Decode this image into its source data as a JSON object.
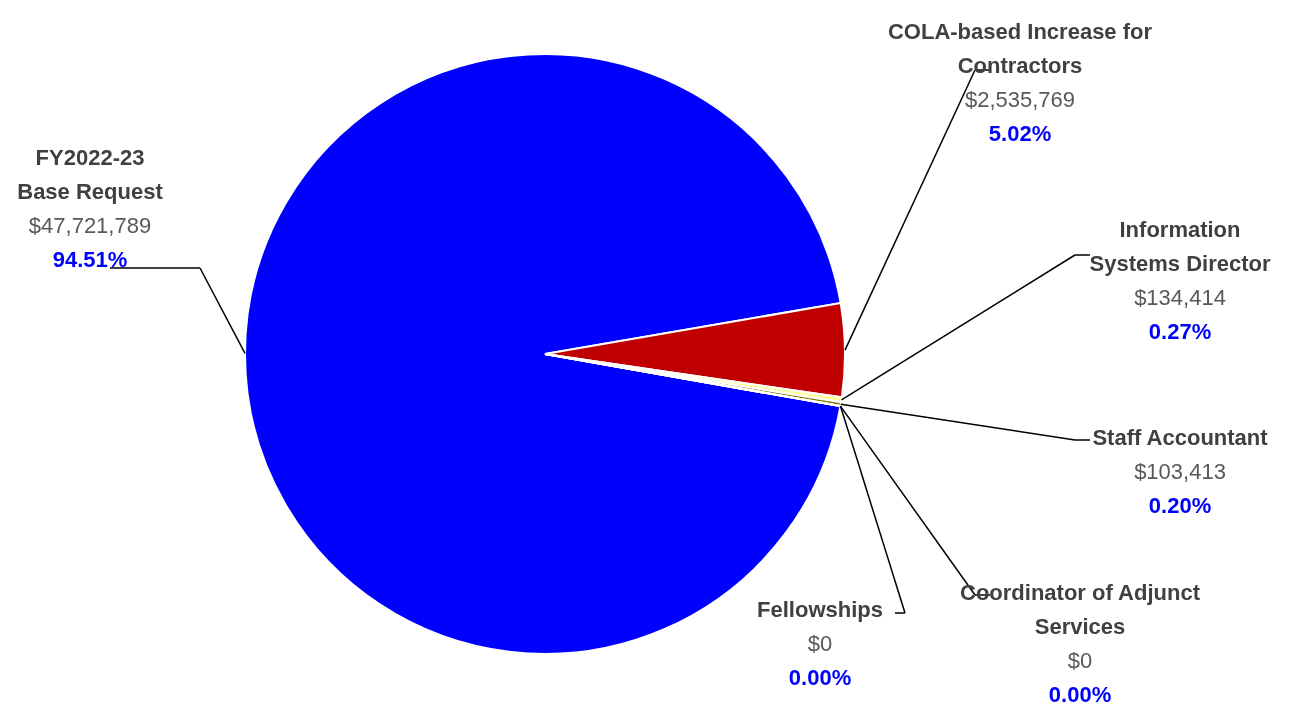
{
  "chart_data": {
    "type": "pie",
    "categories": [
      "FY2022-23 Base Request",
      "COLA-based Increase for Contractors",
      "Information Systems Director",
      "Staff Accountant",
      "Coordinator of Adjunct Services",
      "Fellowships"
    ],
    "values": [
      47721789,
      2535769,
      134414,
      103413,
      0,
      0
    ],
    "value_labels": [
      "$47,721,789",
      "$2,535,769",
      "$134,414",
      "$103,413",
      "$0",
      "$0"
    ],
    "annotations": [
      "94.51%",
      "5.02%",
      "0.27%",
      "0.20%",
      "0.00%",
      "0.00%"
    ],
    "colors": [
      "#0000ff",
      "#c00000",
      "#ffff99",
      "#7f7f00",
      "#4f5f55",
      "#1f2f4f"
    ]
  }
}
